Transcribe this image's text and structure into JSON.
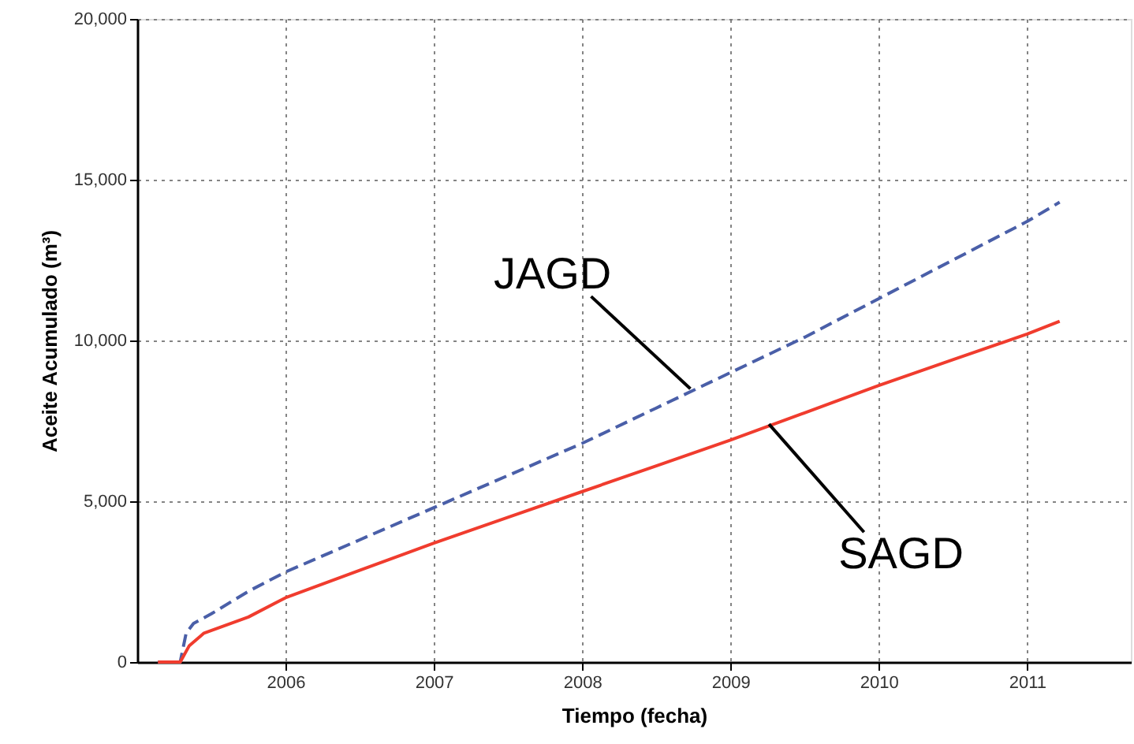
{
  "chart_data": {
    "type": "line",
    "xlabel": "Tiempo (fecha)",
    "ylabel": "Aceite Acumulado (m³)",
    "xlim": [
      2005,
      2011.7
    ],
    "xticks": [
      2006,
      2007,
      2008,
      2009,
      2010,
      2011
    ],
    "ylim": [
      0,
      20000
    ],
    "yticks": [
      0,
      {
        "value": 5000,
        "label": "5,000"
      },
      {
        "value": 10000,
        "label": "10,000"
      },
      {
        "value": 15000,
        "label": "15,000"
      },
      {
        "value": 20000,
        "label": "20,000"
      }
    ],
    "grid": true,
    "marker": "none",
    "series": [
      {
        "color": "#4a5fa8",
        "line_style": "dashed",
        "x": [
          2005.14,
          2005.29,
          2005.33,
          2005.38,
          2005.5,
          2005.75,
          2006,
          2006.5,
          2007,
          2007.5,
          2008,
          2008.5,
          2009,
          2009.5,
          2010,
          2010.5,
          2011,
          2011.22
        ],
        "values": [
          0,
          0,
          900,
          1200,
          1500,
          2200,
          2800,
          3800,
          4800,
          5800,
          6800,
          7900,
          9000,
          10100,
          11300,
          12500,
          13700,
          14300
        ]
      },
      {
        "color": "#f03c2e",
        "line_style": "solid",
        "x": [
          2005.14,
          2005.29,
          2005.35,
          2005.45,
          2005.75,
          2006,
          2006.5,
          2007,
          2007.5,
          2008,
          2008.5,
          2009,
          2009.5,
          2010,
          2010.5,
          2011,
          2011.22
        ],
        "values": [
          0,
          0,
          500,
          900,
          1400,
          2000,
          2850,
          3700,
          4500,
          5300,
          6100,
          6900,
          7750,
          8600,
          9400,
          10200,
          10600
        ]
      }
    ],
    "annotations": [
      {
        "text": "JAGD",
        "x": 2008.73,
        "y": 8500
      },
      {
        "text": "SAGD",
        "x": 2009.26,
        "y": 7400
      }
    ]
  }
}
